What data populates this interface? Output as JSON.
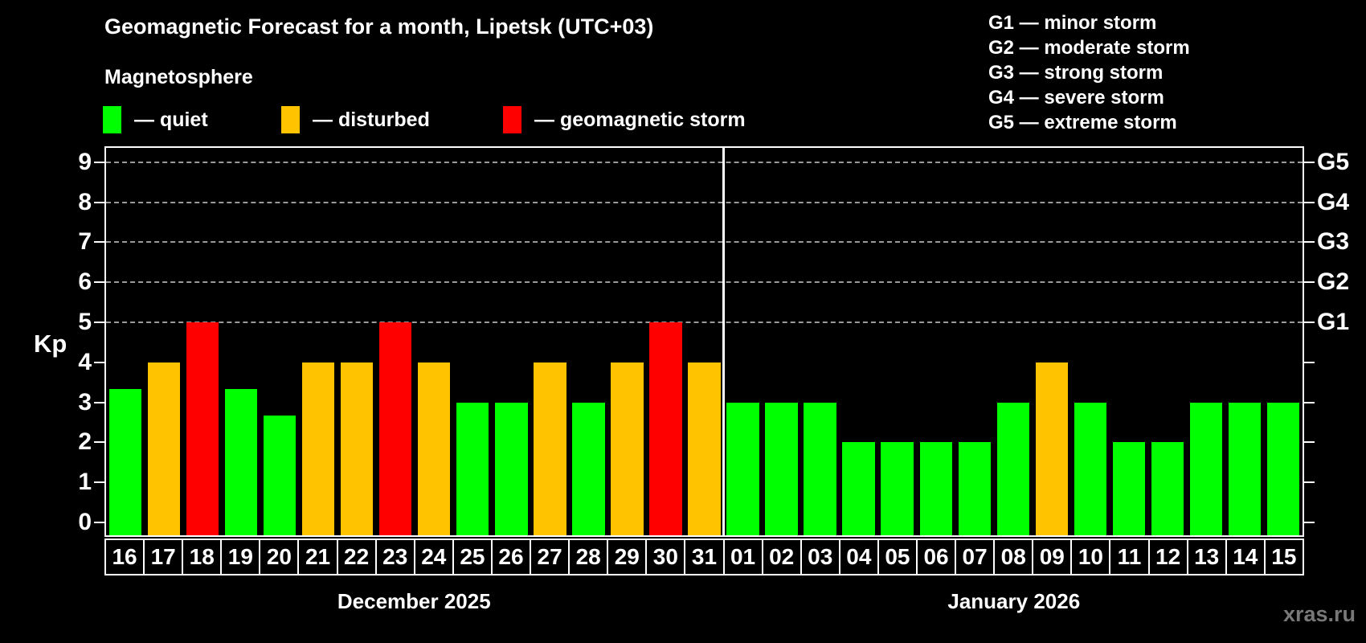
{
  "header": {
    "title": "Geomagnetic Forecast for a month, Lipetsk (UTC+03)",
    "subtitle": "Magnetosphere",
    "legend": [
      {
        "name": "quiet",
        "label": "— quiet",
        "color": "#00ff00"
      },
      {
        "name": "disturbed",
        "label": "— disturbed",
        "color": "#ffc300"
      },
      {
        "name": "storm",
        "label": "— geomagnetic storm",
        "color": "#ff0000"
      }
    ],
    "g_scale_legend": [
      "G1 — minor storm",
      "G2 — moderate storm",
      "G3 — strong storm",
      "G4 — severe storm",
      "G5 — extreme storm"
    ]
  },
  "chart_data": {
    "type": "bar",
    "ylabel": "Kp",
    "y_ticks": [
      0,
      1,
      2,
      3,
      4,
      5,
      6,
      7,
      8,
      9
    ],
    "ylim": [
      -0.32,
      9.36
    ],
    "gridlines_at": [
      5,
      6,
      7,
      8,
      9
    ],
    "grid_style": "dashed",
    "right_axis_labels": [
      {
        "label": "G1",
        "value": 5
      },
      {
        "label": "G2",
        "value": 6
      },
      {
        "label": "G3",
        "value": 7
      },
      {
        "label": "G4",
        "value": 8
      },
      {
        "label": "G5",
        "value": 9
      }
    ],
    "groups": [
      {
        "month": "December 2025",
        "days": [
          {
            "day": "16",
            "kp": 3.33,
            "status": "quiet"
          },
          {
            "day": "17",
            "kp": 4,
            "status": "disturbed"
          },
          {
            "day": "18",
            "kp": 5,
            "status": "storm"
          },
          {
            "day": "19",
            "kp": 3.33,
            "status": "quiet"
          },
          {
            "day": "20",
            "kp": 2.67,
            "status": "quiet"
          },
          {
            "day": "21",
            "kp": 4,
            "status": "disturbed"
          },
          {
            "day": "22",
            "kp": 4,
            "status": "disturbed"
          },
          {
            "day": "23",
            "kp": 5,
            "status": "storm"
          },
          {
            "day": "24",
            "kp": 4,
            "status": "disturbed"
          },
          {
            "day": "25",
            "kp": 3,
            "status": "quiet"
          },
          {
            "day": "26",
            "kp": 3,
            "status": "quiet"
          },
          {
            "day": "27",
            "kp": 4,
            "status": "disturbed"
          },
          {
            "day": "28",
            "kp": 3,
            "status": "quiet"
          },
          {
            "day": "29",
            "kp": 4,
            "status": "disturbed"
          },
          {
            "day": "30",
            "kp": 5,
            "status": "storm"
          },
          {
            "day": "31",
            "kp": 4,
            "status": "disturbed"
          }
        ]
      },
      {
        "month": "January 2026",
        "days": [
          {
            "day": "01",
            "kp": 3,
            "status": "quiet"
          },
          {
            "day": "02",
            "kp": 3,
            "status": "quiet"
          },
          {
            "day": "03",
            "kp": 3,
            "status": "quiet"
          },
          {
            "day": "04",
            "kp": 2,
            "status": "quiet"
          },
          {
            "day": "05",
            "kp": 2,
            "status": "quiet"
          },
          {
            "day": "06",
            "kp": 2,
            "status": "quiet"
          },
          {
            "day": "07",
            "kp": 2,
            "status": "quiet"
          },
          {
            "day": "08",
            "kp": 3,
            "status": "quiet"
          },
          {
            "day": "09",
            "kp": 4,
            "status": "disturbed"
          },
          {
            "day": "10",
            "kp": 3,
            "status": "quiet"
          },
          {
            "day": "11",
            "kp": 2,
            "status": "quiet"
          },
          {
            "day": "12",
            "kp": 2,
            "status": "quiet"
          },
          {
            "day": "13",
            "kp": 3,
            "status": "quiet"
          },
          {
            "day": "14",
            "kp": 3,
            "status": "quiet"
          },
          {
            "day": "15",
            "kp": 3,
            "status": "quiet"
          }
        ]
      }
    ]
  },
  "colors": {
    "quiet": "#00ff00",
    "disturbed": "#ffc300",
    "storm": "#ff0000",
    "background": "#000000",
    "axis": "#ffffff",
    "gridline": "#9a9a9a"
  },
  "watermark": "xras.ru"
}
